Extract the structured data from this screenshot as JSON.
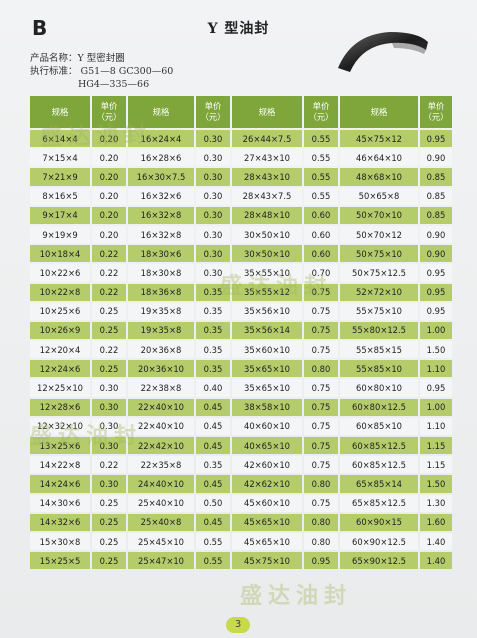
{
  "header": {
    "letter": "B",
    "title": "Y 型油封",
    "product_line": "产品名称：Y 型密封圈",
    "standard_line": "执行标准：  G51—8  GC300—60",
    "standard_line2": "HG4—335—66"
  },
  "table": {
    "headers": [
      "规格",
      "单价\n（元）",
      "规格",
      "单价\n（元）",
      "规格",
      "单价\n（元）",
      "规格",
      "单价\n（元）"
    ],
    "rows": [
      [
        "6×14×4",
        "0.20",
        "16×24×4",
        "0.30",
        "26×44×7.5",
        "0.55",
        "45×75×12",
        "0.95"
      ],
      [
        "7×15×4",
        "0.20",
        "16×28×6",
        "0.30",
        "27×43×10",
        "0.55",
        "46×64×10",
        "0.90"
      ],
      [
        "7×21×9",
        "0.20",
        "16×30×7.5",
        "0.30",
        "28×43×10",
        "0.55",
        "48×68×10",
        "0.85"
      ],
      [
        "8×16×5",
        "0.20",
        "16×32×6",
        "0.30",
        "28×43×7.5",
        "0.55",
        "50×65×8",
        "0.85"
      ],
      [
        "9×17×4",
        "0.20",
        "16×32×8",
        "0.30",
        "28×48×10",
        "0.60",
        "50×70×10",
        "0.85"
      ],
      [
        "9×19×9",
        "0.20",
        "16×32×8",
        "0.30",
        "30×50×10",
        "0.60",
        "50×70×12",
        "0.90"
      ],
      [
        "10×18×4",
        "0.22",
        "18×30×6",
        "0.30",
        "30×50×10",
        "0.60",
        "50×75×10",
        "0.90"
      ],
      [
        "10×22×6",
        "0.22",
        "18×30×8",
        "0.30",
        "35×55×10",
        "0.70",
        "50×75×12.5",
        "0.95"
      ],
      [
        "10×22×8",
        "0.22",
        "18×36×8",
        "0.35",
        "35×55×12",
        "0.75",
        "52×72×10",
        "0.95"
      ],
      [
        "10×25×6",
        "0.25",
        "19×35×8",
        "0.35",
        "35×56×10",
        "0.75",
        "55×75×10",
        "0.95"
      ],
      [
        "10×26×9",
        "0.25",
        "19×35×8",
        "0.35",
        "35×56×14",
        "0.75",
        "55×80×12.5",
        "1.00"
      ],
      [
        "12×20×4",
        "0.22",
        "20×36×8",
        "0.35",
        "35×60×10",
        "0.75",
        "55×85×15",
        "1.50"
      ],
      [
        "12×24×6",
        "0.25",
        "20×36×10",
        "0.35",
        "35×65×10",
        "0.80",
        "55×85×10",
        "1.10"
      ],
      [
        "12×25×10",
        "0.30",
        "22×38×8",
        "0.40",
        "35×65×10",
        "0.75",
        "60×80×10",
        "0.95"
      ],
      [
        "12×28×6",
        "0.30",
        "22×40×10",
        "0.45",
        "38×58×10",
        "0.75",
        "60×80×12.5",
        "1.00"
      ],
      [
        "12×32×10",
        "0.30",
        "22×40×10",
        "0.45",
        "40×60×10",
        "0.75",
        "60×85×10",
        "1.10"
      ],
      [
        "13×25×6",
        "0.30",
        "22×42×10",
        "0.45",
        "40×65×10",
        "0.75",
        "60×85×12.5",
        "1.15"
      ],
      [
        "14×22×8",
        "0.22",
        "22×35×8",
        "0.35",
        "42×60×10",
        "0.75",
        "60×85×12.5",
        "1.15"
      ],
      [
        "14×24×6",
        "0.30",
        "24×40×10",
        "0.45",
        "42×62×10",
        "0.80",
        "65×85×14",
        "1.50"
      ],
      [
        "14×30×6",
        "0.25",
        "25×40×10",
        "0.50",
        "45×60×10",
        "0.75",
        "65×85×12.5",
        "1.30"
      ],
      [
        "14×32×6",
        "0.25",
        "25×40×8",
        "0.45",
        "45×65×10",
        "0.80",
        "60×90×15",
        "1.60"
      ],
      [
        "15×30×8",
        "0.25",
        "25×45×10",
        "0.55",
        "45×65×10",
        "0.80",
        "60×90×12.5",
        "1.40"
      ],
      [
        "15×25×5",
        "0.25",
        "25×47×10",
        "0.55",
        "45×75×10",
        "0.95",
        "65×90×12.5",
        "1.40"
      ]
    ]
  },
  "watermark_text": "盛达油封",
  "page_number": "3"
}
